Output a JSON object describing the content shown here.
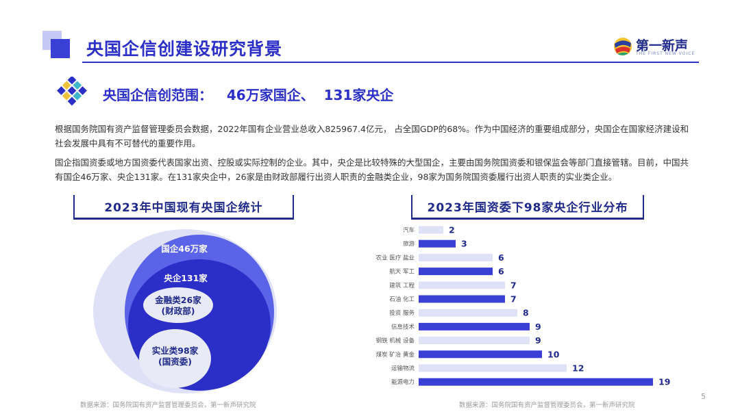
{
  "header": {
    "title": "央国企信创建设研究背景",
    "logo_text": "第一新声",
    "logo_subtext": "THE FIRST NEW VOICE"
  },
  "subtitle": "央国企信创范围：   46万家国企、  131家央企",
  "paragraphs": [
    "根据国务院国有资产监督管理委员会数据，2022年国有企业营业总收入825967.4亿元， 占全国GDP的68%。作为中国经济的重要组成部分，央国企在国家经济建设和社会发展中具有不可替代的重要作用。",
    "国企指国资委或地方国资委代表国家出资、控股或实际控制的企业。其中，央企是比较特殊的大型国企，主要由国务院国资委和银保监会等部门直接管辖。目前，中国共有国企46万家、央企131家。在131家央企中，26家是由财政部履行出资人职责的金融类企业，98家为国务院国资委履行出资人职责的实业类企业。"
  ],
  "left_panel": {
    "title": "2023年中国现有央国企统计",
    "circles": {
      "guoqi": "国企46万家",
      "yangqi": "央企131家",
      "financial": "金融类26家",
      "financial_sub": "(财政部)",
      "industrial": "实业类98家",
      "industrial_sub": "(国资委)"
    },
    "source": "数据来源：国务院国有资产监督管理委员会，第一新声研究院"
  },
  "right_panel": {
    "title": "2023年国资委下98家央企行业分布",
    "source": "数据来源：国务院国有资产监督管理委员会，第一新声研究院"
  },
  "page_number": "5",
  "colors": {
    "primary": "#2b2fc7",
    "dark_navy": "#1f2a8a",
    "bar_dark": "#3a3fd6",
    "bar_light": "#dfe2f7",
    "circle_light": "#dfe2f7",
    "circle_mid": "#5b64e8"
  },
  "chart_data": {
    "type": "bar",
    "orientation": "horizontal",
    "title": "2023年国资委下98家央企行业分布",
    "categories": [
      "汽车",
      "旅游",
      "农业 医疗 盐业",
      "航天 军工",
      "建筑 工程",
      "石油 化工",
      "投资 服务",
      "信息技术",
      "钢铁 机械 设备",
      "煤炭 矿冶 黄金",
      "运输物流",
      "能源电力"
    ],
    "values": [
      2,
      3,
      6,
      6,
      7,
      7,
      8,
      9,
      9,
      10,
      12,
      19
    ],
    "bar_styles": [
      "light",
      "dark",
      "light",
      "dark",
      "light",
      "dark",
      "light",
      "dark",
      "light",
      "dark",
      "light",
      "dark"
    ],
    "xlim": [
      0,
      19
    ]
  }
}
